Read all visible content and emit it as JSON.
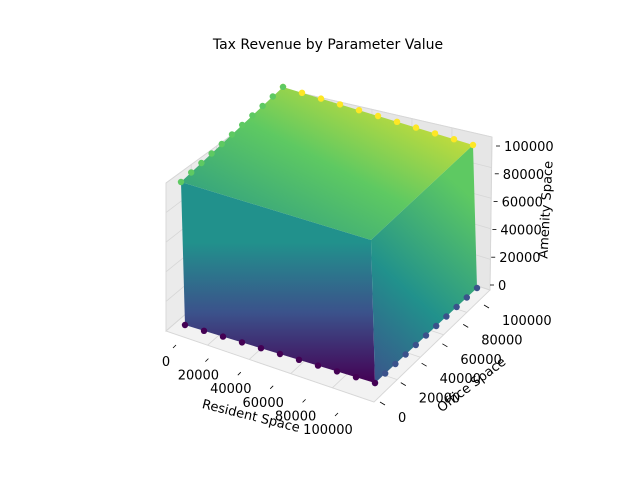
{
  "chart_data": {
    "type": "scatter3d",
    "title": "Tax Revenue by Parameter Value",
    "xlabel": "Resident Space",
    "ylabel": "Office Space",
    "zlabel": "Amenity Space",
    "x_ticks": [
      0,
      20000,
      40000,
      60000,
      80000,
      100000
    ],
    "y_ticks": [
      0,
      20000,
      40000,
      60000,
      80000,
      100000
    ],
    "z_ticks": [
      0,
      20000,
      40000,
      60000,
      80000,
      100000
    ],
    "xlim": [
      0,
      100000
    ],
    "ylim": [
      0,
      100000
    ],
    "zlim": [
      0,
      100000
    ],
    "color_by": "Tax Revenue",
    "colormap": [
      "#440154",
      "#3b528b",
      "#21918c",
      "#5ec962",
      "#fde725"
    ],
    "points_per_axis": 11,
    "grid": true
  }
}
